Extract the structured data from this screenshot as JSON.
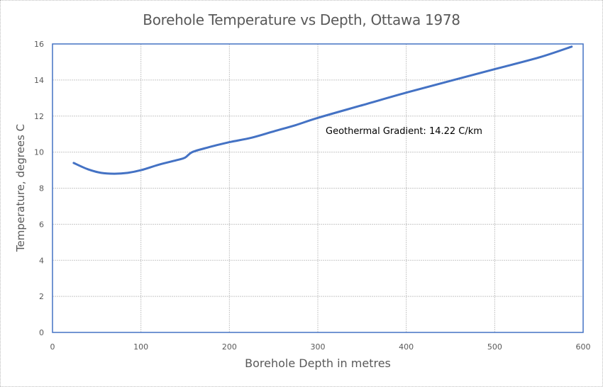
{
  "chart_data": {
    "type": "line",
    "title": "Borehole Temperature vs Depth, Ottawa 1978",
    "xlabel": "Borehole Depth in metres",
    "ylabel": "Temperature, degrees C",
    "xlim": [
      0,
      600
    ],
    "ylim": [
      0,
      16
    ],
    "x_ticks": [
      0,
      100,
      200,
      300,
      400,
      500,
      600
    ],
    "y_ticks": [
      0,
      2,
      4,
      6,
      8,
      10,
      12,
      14,
      16
    ],
    "grid": true,
    "legend": null,
    "annotation": "Geothermal Gradient: 14.22 C/km",
    "series": [
      {
        "name": "Temperature",
        "color": "#4472c4",
        "x": [
          24,
          40,
          55,
          70,
          85,
          100,
          120,
          140,
          150,
          158,
          175,
          200,
          225,
          250,
          275,
          300,
          350,
          400,
          450,
          500,
          550,
          587
        ],
        "y": [
          9.4,
          9.05,
          8.85,
          8.8,
          8.85,
          9.0,
          9.3,
          9.55,
          9.7,
          10.0,
          10.25,
          10.55,
          10.8,
          11.15,
          11.5,
          11.9,
          12.6,
          13.3,
          13.95,
          14.6,
          15.25,
          15.85
        ]
      }
    ]
  },
  "colors": {
    "line": "#4472c4",
    "plot_border": "#4472c4",
    "grid": "#c8c8c8",
    "text": "#595959"
  }
}
